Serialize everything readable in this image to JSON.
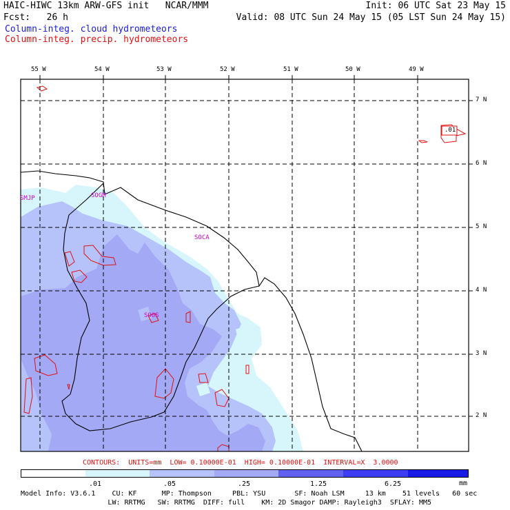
{
  "header": {
    "title_left": "HAIC-HIWC 13km ARW-GFS init   NCAR/MMM",
    "init_right": "Init: 06 UTC Sat 23 May 15",
    "fcst_label": "Fcst:   26 h",
    "valid_right": "Valid: 08 UTC Sun 24 May 15 (05 LST Sun 24 May 15)",
    "legend_cloud": "Column-integ. cloud hydrometeors",
    "legend_precip": "Column-integ. precip. hydrometeors"
  },
  "map": {
    "lon_labels": [
      "55 W",
      "54 W",
      "53 W",
      "52 W",
      "51 W",
      "50 W",
      "49 W"
    ],
    "lat_labels": [
      "7 N",
      "6 N",
      "5 N",
      "4 N",
      "3 N",
      "2 N"
    ],
    "stations": [
      "SMJP",
      "SOGM",
      "SOCA",
      "SOOS"
    ],
    "contour_label": ".01"
  },
  "contours_info": "CONTOURS:  UNITS=mm  LOW= 0.10000E-01  HIGH= 0.10000E-01  INTERVAL=X  3.0000",
  "colorbar": {
    "labels": [
      ".01",
      ".05",
      ".25",
      "1.25",
      "6.25"
    ],
    "units": "mm",
    "colors": [
      "#ffffff",
      "#d6f6fb",
      "#b6c3fb",
      "#a3a9f5",
      "#6161f0",
      "#3c3cf0",
      "#1a1ae6"
    ]
  },
  "footer": {
    "line1": "Model Info: V3.6.1    CU: KF      MP: Thompson     PBL: YSU       SF: Noah LSM     13 km    51 levels   60 sec",
    "line2": "                     LW: RRTMG   SW: RRTMG  DIFF: full    KM: 2D Smagor DAMP: Rayleigh3  SFLAY: MM5"
  }
}
